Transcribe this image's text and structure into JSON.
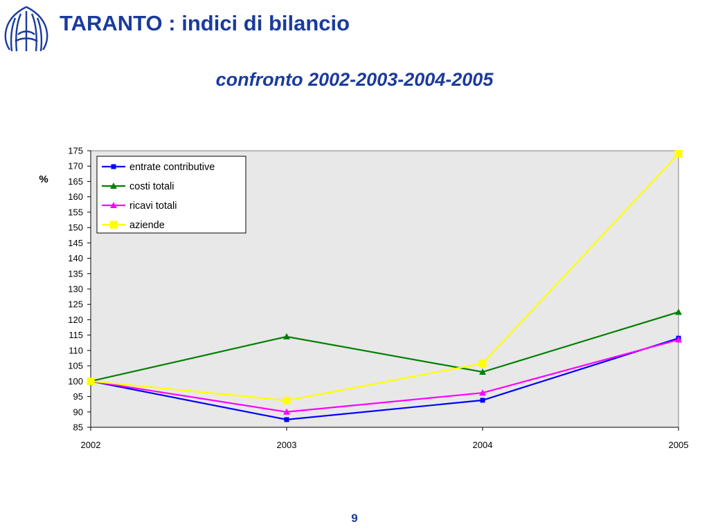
{
  "header": {
    "title": "TARANTO : indici di bilancio",
    "subtitle": "confronto 2002-2003-2004-2005"
  },
  "logo": {
    "icon": "organization-emblem-icon",
    "color": "#1a3b9c"
  },
  "footer": {
    "page_number": "9"
  },
  "chart_data": {
    "type": "line",
    "title": "",
    "xlabel": "",
    "ylabel": "%",
    "categories": [
      "2002",
      "2003",
      "2004",
      "2005"
    ],
    "ylim": [
      85,
      175
    ],
    "ytick_step": 5,
    "grid": false,
    "plot_background": "#e8e8e8",
    "legend_position": "top-left",
    "series": [
      {
        "name": "entrate contributive",
        "color": "#0000ff",
        "marker": "square",
        "values": [
          100,
          87.5,
          93.8,
          114
        ]
      },
      {
        "name": "costi totali",
        "color": "#008000",
        "marker": "triangle",
        "values": [
          100,
          114.5,
          103,
          122.5
        ]
      },
      {
        "name": "ricavi totali",
        "color": "#ff00ff",
        "marker": "triangle",
        "values": [
          100,
          90,
          96.2,
          113.5
        ]
      },
      {
        "name": "aziende",
        "color": "#ffff00",
        "marker": "square",
        "values": [
          100,
          93.7,
          105.8,
          174
        ]
      }
    ]
  }
}
